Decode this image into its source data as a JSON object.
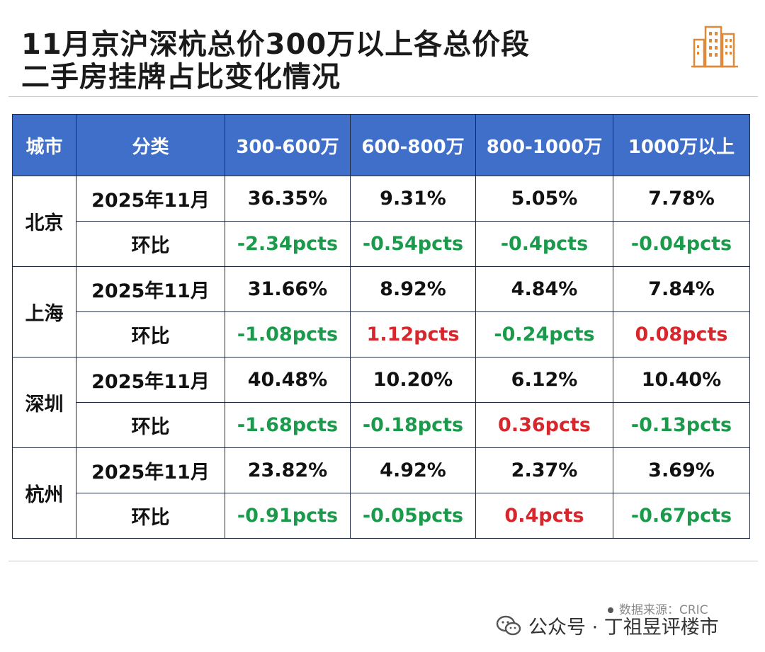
{
  "title": {
    "line1": "11月京沪深杭总价300万以上各总价段",
    "line2": "二手房挂牌占比变化情况"
  },
  "logo_icon": "buildings-icon",
  "table": {
    "headers": [
      "城市",
      "分类",
      "300-600万",
      "600-800万",
      "800-1000万",
      "1000万以上"
    ],
    "rows": [
      {
        "city": "北京",
        "month_label": "2025年11月",
        "values": [
          "36.35%",
          "9.31%",
          "5.05%",
          "7.78%"
        ],
        "change_label": "环比",
        "changes": [
          {
            "text": "-2.34pcts",
            "dir": "neg"
          },
          {
            "text": "-0.54pcts",
            "dir": "neg"
          },
          {
            "text": "-0.4pcts",
            "dir": "neg"
          },
          {
            "text": "-0.04pcts",
            "dir": "neg"
          }
        ]
      },
      {
        "city": "上海",
        "month_label": "2025年11月",
        "values": [
          "31.66%",
          "8.92%",
          "4.84%",
          "7.84%"
        ],
        "change_label": "环比",
        "changes": [
          {
            "text": "-1.08pcts",
            "dir": "neg"
          },
          {
            "text": "1.12pcts",
            "dir": "pos"
          },
          {
            "text": "-0.24pcts",
            "dir": "neg"
          },
          {
            "text": "0.08pcts",
            "dir": "pos"
          }
        ]
      },
      {
        "city": "深圳",
        "month_label": "2025年11月",
        "values": [
          "40.48%",
          "10.20%",
          "6.12%",
          "10.40%"
        ],
        "change_label": "环比",
        "changes": [
          {
            "text": "-1.68pcts",
            "dir": "neg"
          },
          {
            "text": "-0.18pcts",
            "dir": "neg"
          },
          {
            "text": "0.36pcts",
            "dir": "pos"
          },
          {
            "text": "-0.13pcts",
            "dir": "neg"
          }
        ]
      },
      {
        "city": "杭州",
        "month_label": "2025年11月",
        "values": [
          "23.82%",
          "4.92%",
          "2.37%",
          "3.69%"
        ],
        "change_label": "环比",
        "changes": [
          {
            "text": "-0.91pcts",
            "dir": "neg"
          },
          {
            "text": "-0.05pcts",
            "dir": "neg"
          },
          {
            "text": "0.4pcts",
            "dir": "pos"
          },
          {
            "text": "-0.67pcts",
            "dir": "neg"
          }
        ]
      }
    ]
  },
  "colors": {
    "header_bg": "#3f6fc9",
    "negative": "#1a9a4a",
    "positive": "#d8262d"
  },
  "footer": {
    "source": "数据来源：CRIC",
    "wechat": "公众号 · 丁祖昱评楼市",
    "wechat_icon": "wechat-icon"
  }
}
